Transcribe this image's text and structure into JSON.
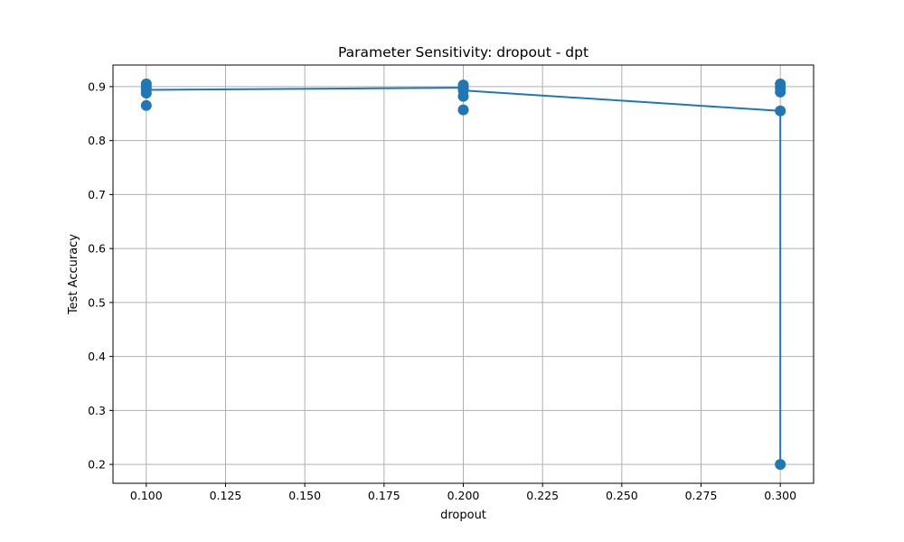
{
  "chart_data": {
    "type": "scatter",
    "title": "Parameter Sensitivity: dropout - dpt",
    "xlabel": "dropout",
    "ylabel": "Test Accuracy",
    "xlim": [
      0.0895,
      0.3105
    ],
    "ylim": [
      0.165,
      0.94
    ],
    "x_ticks": [
      0.1,
      0.125,
      0.15,
      0.175,
      0.2,
      0.225,
      0.25,
      0.275,
      0.3
    ],
    "x_tick_labels": [
      "0.100",
      "0.125",
      "0.150",
      "0.175",
      "0.200",
      "0.225",
      "0.250",
      "0.275",
      "0.300"
    ],
    "y_ticks": [
      0.2,
      0.3,
      0.4,
      0.5,
      0.6,
      0.7,
      0.8,
      0.9
    ],
    "y_tick_labels": [
      "0.2",
      "0.3",
      "0.4",
      "0.5",
      "0.6",
      "0.7",
      "0.8",
      "0.9"
    ],
    "grid": true,
    "legend": "none",
    "color": "#1f77b4",
    "points": [
      {
        "x": 0.1,
        "y": 0.905
      },
      {
        "x": 0.1,
        "y": 0.9
      },
      {
        "x": 0.1,
        "y": 0.895
      },
      {
        "x": 0.1,
        "y": 0.888
      },
      {
        "x": 0.1,
        "y": 0.865
      },
      {
        "x": 0.2,
        "y": 0.903
      },
      {
        "x": 0.2,
        "y": 0.898
      },
      {
        "x": 0.2,
        "y": 0.893
      },
      {
        "x": 0.2,
        "y": 0.882
      },
      {
        "x": 0.2,
        "y": 0.857
      },
      {
        "x": 0.3,
        "y": 0.905
      },
      {
        "x": 0.3,
        "y": 0.898
      },
      {
        "x": 0.3,
        "y": 0.89
      },
      {
        "x": 0.3,
        "y": 0.855
      },
      {
        "x": 0.3,
        "y": 0.2
      }
    ],
    "line": [
      {
        "x": 0.1,
        "y": 0.894
      },
      {
        "x": 0.2,
        "y": 0.898
      },
      {
        "x": 0.2,
        "y": 0.893
      },
      {
        "x": 0.3,
        "y": 0.855
      },
      {
        "x": 0.3,
        "y": 0.2
      }
    ]
  }
}
